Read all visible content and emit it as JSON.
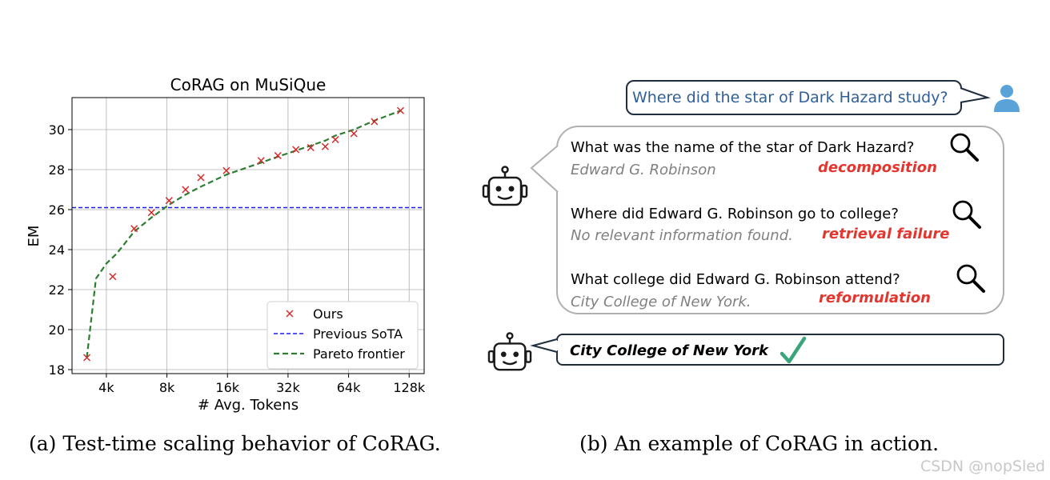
{
  "chart_data": {
    "type": "scatter",
    "title": "CoRAG on MuSiQue",
    "xlabel": "# Avg. Tokens",
    "ylabel": "EM",
    "x_scale": "log2",
    "xlim": [
      2700,
      152000
    ],
    "ylim": [
      17.8,
      31.6
    ],
    "x_ticks": [
      4000,
      8000,
      16000,
      32000,
      64000,
      128000
    ],
    "x_tick_labels": [
      "4k",
      "8k",
      "16k",
      "32k",
      "64k",
      "128k"
    ],
    "y_ticks": [
      18,
      20,
      22,
      24,
      26,
      28,
      30
    ],
    "y_tick_labels": [
      "18",
      "20",
      "22",
      "24",
      "26",
      "28",
      "30"
    ],
    "grid": true,
    "legend_position": "lower-right",
    "series": [
      {
        "name": "Ours",
        "kind": "scatter",
        "marker": "x",
        "color": "#d62728",
        "x": [
          3200,
          4300,
          5500,
          6700,
          8200,
          9900,
          11800,
          15800,
          23500,
          28500,
          35000,
          41500,
          49000,
          55000,
          68000,
          86000,
          116000
        ],
        "y": [
          18.6,
          22.65,
          25.05,
          25.85,
          26.45,
          27.0,
          27.6,
          27.95,
          28.45,
          28.7,
          29.0,
          29.1,
          29.15,
          29.5,
          29.8,
          30.4,
          30.95
        ]
      },
      {
        "name": "Previous SoTA",
        "kind": "hline",
        "color": "#1f1fe8",
        "y": 26.1
      },
      {
        "name": "Pareto frontier",
        "kind": "line",
        "color": "#2e7d32",
        "x": [
          3200,
          3550,
          4000,
          4500,
          5500,
          6700,
          8200,
          9900,
          11800,
          15800,
          23500,
          28500,
          35000,
          41500,
          49000,
          55000,
          68000,
          86000,
          116000
        ],
        "y": [
          18.6,
          22.55,
          23.3,
          23.8,
          24.9,
          25.6,
          26.25,
          26.75,
          27.15,
          27.75,
          28.35,
          28.65,
          28.95,
          29.2,
          29.45,
          29.7,
          30.0,
          30.45,
          30.95
        ]
      }
    ]
  },
  "captions": {
    "a": "(a) Test-time scaling behavior of CoRAG.",
    "b": "(b) An example of CoRAG in action."
  },
  "example": {
    "question": "Where did the star of Dark Hazard study?",
    "steps": [
      {
        "query": "What was the name of the star of Dark Hazard?",
        "answer": "Edward G. Robinson",
        "tag": "decomposition"
      },
      {
        "query": "Where did Edward G. Robinson go to college?",
        "answer": "No relevant information found.",
        "tag": "retrieval failure"
      },
      {
        "query": "What college did Edward G. Robinson attend?",
        "answer": "City College of New York.",
        "tag": "reformulation"
      }
    ],
    "final_answer": "City College of New York",
    "user_icon_color": "#5aa3d8",
    "check_color": "#3aa57a"
  },
  "watermark": "CSDN @nopSled"
}
